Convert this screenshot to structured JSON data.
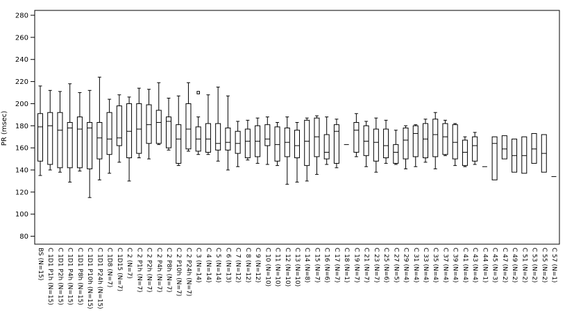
{
  "chart_data": {
    "type": "box",
    "title": "",
    "xlabel": "",
    "ylabel": "PR (msec)",
    "ylim": [
      80,
      280
    ],
    "yticks": [
      80,
      100,
      120,
      140,
      160,
      180,
      200,
      220,
      240,
      260,
      280
    ],
    "grid": false,
    "legend": "none",
    "colors": {
      "line": "#000000",
      "background": "#ffffff"
    },
    "boxes": [
      {
        "label": "BS (N=15)",
        "low": 135,
        "q1": 148,
        "median": 179,
        "q3": 191,
        "high": 216
      },
      {
        "label": "C 1D1 P1h (N=15)",
        "low": 140,
        "q1": 145,
        "median": 180,
        "q3": 192,
        "high": 212
      },
      {
        "label": "C 1D1 P2h (N=15)",
        "low": 138,
        "q1": 142,
        "median": 176,
        "q3": 192,
        "high": 211
      },
      {
        "label": "C 1D1 P4h (N=15)",
        "low": 129,
        "q1": 142,
        "median": 178,
        "q3": 183,
        "high": 218
      },
      {
        "label": "C 1D1 P8h (N=15)",
        "low": 139,
        "q1": 142,
        "median": 177,
        "q3": 188,
        "high": 210
      },
      {
        "label": "C 1D1 P10h (N=15)",
        "low": 115,
        "q1": 141,
        "median": 178,
        "q3": 183,
        "high": 212
      },
      {
        "label": "C 1D1 P24h (N=15)",
        "low": 131,
        "q1": 150,
        "median": 169,
        "q3": 183,
        "high": 224
      },
      {
        "label": "C 1D8 (N=7)",
        "low": 137,
        "q1": 154,
        "median": 168,
        "q3": 192,
        "high": 204
      },
      {
        "label": "C 1D15 (N=7)",
        "low": 147,
        "q1": 162,
        "median": 169,
        "q3": 198,
        "high": 208
      },
      {
        "label": "C 2 (N=7)",
        "low": 130,
        "q1": 151,
        "median": 175,
        "q3": 200,
        "high": 206
      },
      {
        "label": "C 2 P1h (N=7)",
        "low": 151,
        "q1": 155,
        "median": 177,
        "q3": 200,
        "high": 214
      },
      {
        "label": "C 2 P2h (N=7)",
        "low": 150,
        "q1": 164,
        "median": 181,
        "q3": 199,
        "high": 213
      },
      {
        "label": "C 2 P4h (N=7)",
        "low": 163,
        "q1": 164,
        "median": 183,
        "q3": 194,
        "high": 219
      },
      {
        "label": "C 2 P8h (N=7)",
        "low": 158,
        "q1": 160,
        "median": 184,
        "q3": 188,
        "high": 205
      },
      {
        "label": "C 2 P10h (N=7)",
        "low": 144,
        "q1": 146,
        "median": 168,
        "q3": 181,
        "high": 207
      },
      {
        "label": "C 2 P24h (N=7)",
        "low": 157,
        "q1": 159,
        "median": 177,
        "q3": 200,
        "high": 219
      },
      {
        "label": "C 3 (N=14)",
        "low": 154,
        "q1": 157,
        "median": 168,
        "q3": 179,
        "high": 188,
        "outliers": [
          210
        ]
      },
      {
        "label": "C 4 (N=14)",
        "low": 154,
        "q1": 156,
        "median": 168,
        "q3": 182,
        "high": 208
      },
      {
        "label": "C 5 (N=14)",
        "low": 148,
        "q1": 158,
        "median": 164,
        "q3": 182,
        "high": 215
      },
      {
        "label": "C 6 (N=13)",
        "low": 140,
        "q1": 158,
        "median": 165,
        "q3": 178,
        "high": 207
      },
      {
        "label": "C 7 (N=12)",
        "low": 143,
        "q1": 155,
        "median": 164,
        "q3": 175,
        "high": 184
      },
      {
        "label": "C 8 (N=12)",
        "low": 149,
        "q1": 151,
        "median": 166,
        "q3": 177,
        "high": 185
      },
      {
        "label": "C 9 (N=12)",
        "low": 146,
        "q1": 152,
        "median": 166,
        "q3": 180,
        "high": 187
      },
      {
        "label": "C 10 (N=10)",
        "low": 145,
        "q1": 162,
        "median": 168,
        "q3": 181,
        "high": 188
      },
      {
        "label": "C 11 (N=10)",
        "low": 144,
        "q1": 148,
        "median": 163,
        "q3": 179,
        "high": 183
      },
      {
        "label": "C 12 (N=10)",
        "low": 127,
        "q1": 152,
        "median": 165,
        "q3": 178,
        "high": 188
      },
      {
        "label": "C 13 (N=10)",
        "low": 129,
        "q1": 151,
        "median": 162,
        "q3": 176,
        "high": 183
      },
      {
        "label": "C 14 (N=8)",
        "low": 130,
        "q1": 144,
        "median": 166,
        "q3": 185,
        "high": 187
      },
      {
        "label": "C 15 (N=7)",
        "low": 136,
        "q1": 152,
        "median": 170,
        "q3": 187,
        "high": 189
      },
      {
        "label": "C 16 (N=6)",
        "low": 145,
        "q1": 150,
        "median": 156,
        "q3": 172,
        "high": 188
      },
      {
        "label": "C 17 (N=7)",
        "low": 142,
        "q1": 146,
        "median": 175,
        "q3": 181,
        "high": 186
      },
      {
        "label": "C 18 (N=1)",
        "median": 163
      },
      {
        "label": "C 19 (N=7)",
        "low": 152,
        "q1": 156,
        "median": 176,
        "q3": 183,
        "high": 191
      },
      {
        "label": "C 21 (N=7)",
        "low": 143,
        "q1": 153,
        "median": 166,
        "q3": 180,
        "high": 184
      },
      {
        "label": "C 23 (N=7)",
        "low": 138,
        "q1": 148,
        "median": 165,
        "q3": 177,
        "high": 187
      },
      {
        "label": "C 25 (N=6)",
        "low": 146,
        "q1": 151,
        "median": 162,
        "q3": 177,
        "high": 185
      },
      {
        "label": "C 27 (N=5)",
        "low": 145,
        "q1": 146,
        "median": 156,
        "q3": 163,
        "high": 176
      },
      {
        "label": "C 29 (N=4)",
        "low": 141,
        "q1": 150,
        "median": 167,
        "q3": 178,
        "high": 180
      },
      {
        "label": "C 31 (N=4)",
        "low": 143,
        "q1": 152,
        "median": 173,
        "q3": 180,
        "high": 181
      },
      {
        "label": "C 33 (N=4)",
        "low": 147,
        "q1": 151,
        "median": 168,
        "q3": 182,
        "high": 186
      },
      {
        "label": "C 35 (N=4)",
        "low": 141,
        "q1": 152,
        "median": 172,
        "q3": 186,
        "high": 192
      },
      {
        "label": "C 37 (N=4)",
        "low": 153,
        "q1": 154,
        "median": 170,
        "q3": 182,
        "high": 185
      },
      {
        "label": "C 39 (N=4)",
        "low": 144,
        "q1": 150,
        "median": 165,
        "q3": 181,
        "high": 182
      },
      {
        "label": "C 41 (N=4)",
        "low": 143,
        "q1": 144,
        "median": 156,
        "q3": 167,
        "high": 170
      },
      {
        "label": "C 43 (N=4)",
        "low": 145,
        "q1": 148,
        "median": 162,
        "q3": 170,
        "high": 174
      },
      {
        "label": "C 44 (N=1)",
        "median": 143
      },
      {
        "label": "C 45 (N=3)",
        "low": 131,
        "q1": 131,
        "median": 164,
        "q3": 170,
        "high": 170
      },
      {
        "label": "C 47 (N=2)",
        "low": 150,
        "q1": 150,
        "median": 159,
        "q3": 171,
        "high": 171
      },
      {
        "label": "C 49 (N=2)",
        "low": 138,
        "q1": 138,
        "median": 153,
        "q3": 168,
        "high": 168
      },
      {
        "label": "C 51 (N=2)",
        "low": 137,
        "q1": 137,
        "median": 153,
        "q3": 170,
        "high": 170
      },
      {
        "label": "C 53 (N=2)",
        "low": 146,
        "q1": 146,
        "median": 159,
        "q3": 173,
        "high": 173
      },
      {
        "label": "C 55 (N=2)",
        "low": 138,
        "q1": 138,
        "median": 155,
        "q3": 172,
        "high": 172
      },
      {
        "label": "C 57 (N=1)",
        "median": 134
      }
    ]
  }
}
